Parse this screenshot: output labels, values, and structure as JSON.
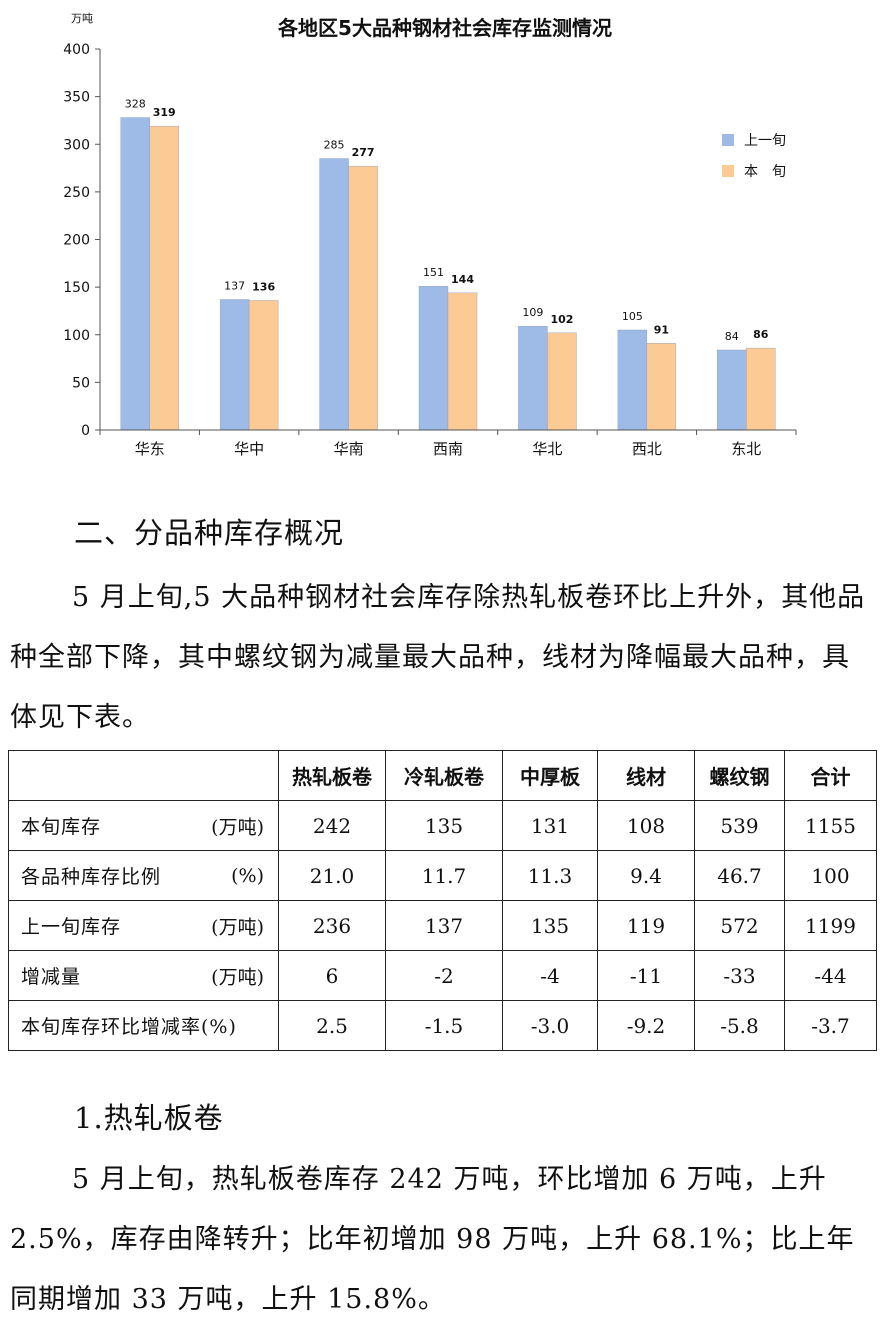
{
  "chart_data": {
    "type": "bar",
    "title": "各地区5大品种钢材社会库存监测情况",
    "ylabel": "万吨",
    "ylim": [
      0,
      400
    ],
    "yticks": [
      0,
      50,
      100,
      150,
      200,
      250,
      300,
      350,
      400
    ],
    "categories": [
      "华东",
      "华中",
      "华南",
      "西南",
      "华北",
      "西北",
      "东北"
    ],
    "series": [
      {
        "name": "上一旬",
        "values": [
          328,
          137,
          285,
          151,
          109,
          105,
          84
        ],
        "color": "#9dbbe6"
      },
      {
        "name": "本　旬",
        "values": [
          319,
          136,
          277,
          144,
          102,
          91,
          86
        ],
        "color": "#fccb95"
      }
    ],
    "legend_position": "right",
    "grid": false
  },
  "section2": {
    "heading": "二、分品种库存概况",
    "paragraph": "5 月上旬,5 大品种钢材社会库存除热轧板卷环比上升外，其他品种全部下降，其中螺纹钢为减量最大品种，线材为降幅最大品种，具体见下表。"
  },
  "table": {
    "columns": [
      "热轧板卷",
      "冷轧板卷",
      "中厚板",
      "线材",
      "螺纹钢",
      "合计"
    ],
    "rows": [
      {
        "label": "本旬库存",
        "unit": "(万吨)",
        "values": [
          "242",
          "135",
          "131",
          "108",
          "539",
          "1155"
        ]
      },
      {
        "label": "各品种库存比例",
        "unit": "(%)",
        "values": [
          "21.0",
          "11.7",
          "11.3",
          "9.4",
          "46.7",
          "100"
        ]
      },
      {
        "label": "上一旬库存",
        "unit": "(万吨)",
        "values": [
          "236",
          "137",
          "135",
          "119",
          "572",
          "1199"
        ]
      },
      {
        "label": "增减量",
        "unit": "(万吨)",
        "values": [
          "6",
          "-2",
          "-4",
          "-11",
          "-33",
          "-44"
        ]
      },
      {
        "label": "本旬库存环比增减率(%)",
        "unit": "",
        "values": [
          "2.5",
          "-1.5",
          "-3.0",
          "-9.2",
          "-5.8",
          "-3.7"
        ]
      }
    ]
  },
  "section3": {
    "heading": "1.热轧板卷",
    "paragraph": "5 月上旬，热轧板卷库存 242 万吨，环比增加 6 万吨，上升 2.5%，库存由降转升；比年初增加 98 万吨，上升 68.1%；比上年同期增加 33 万吨，上升 15.8%。"
  }
}
